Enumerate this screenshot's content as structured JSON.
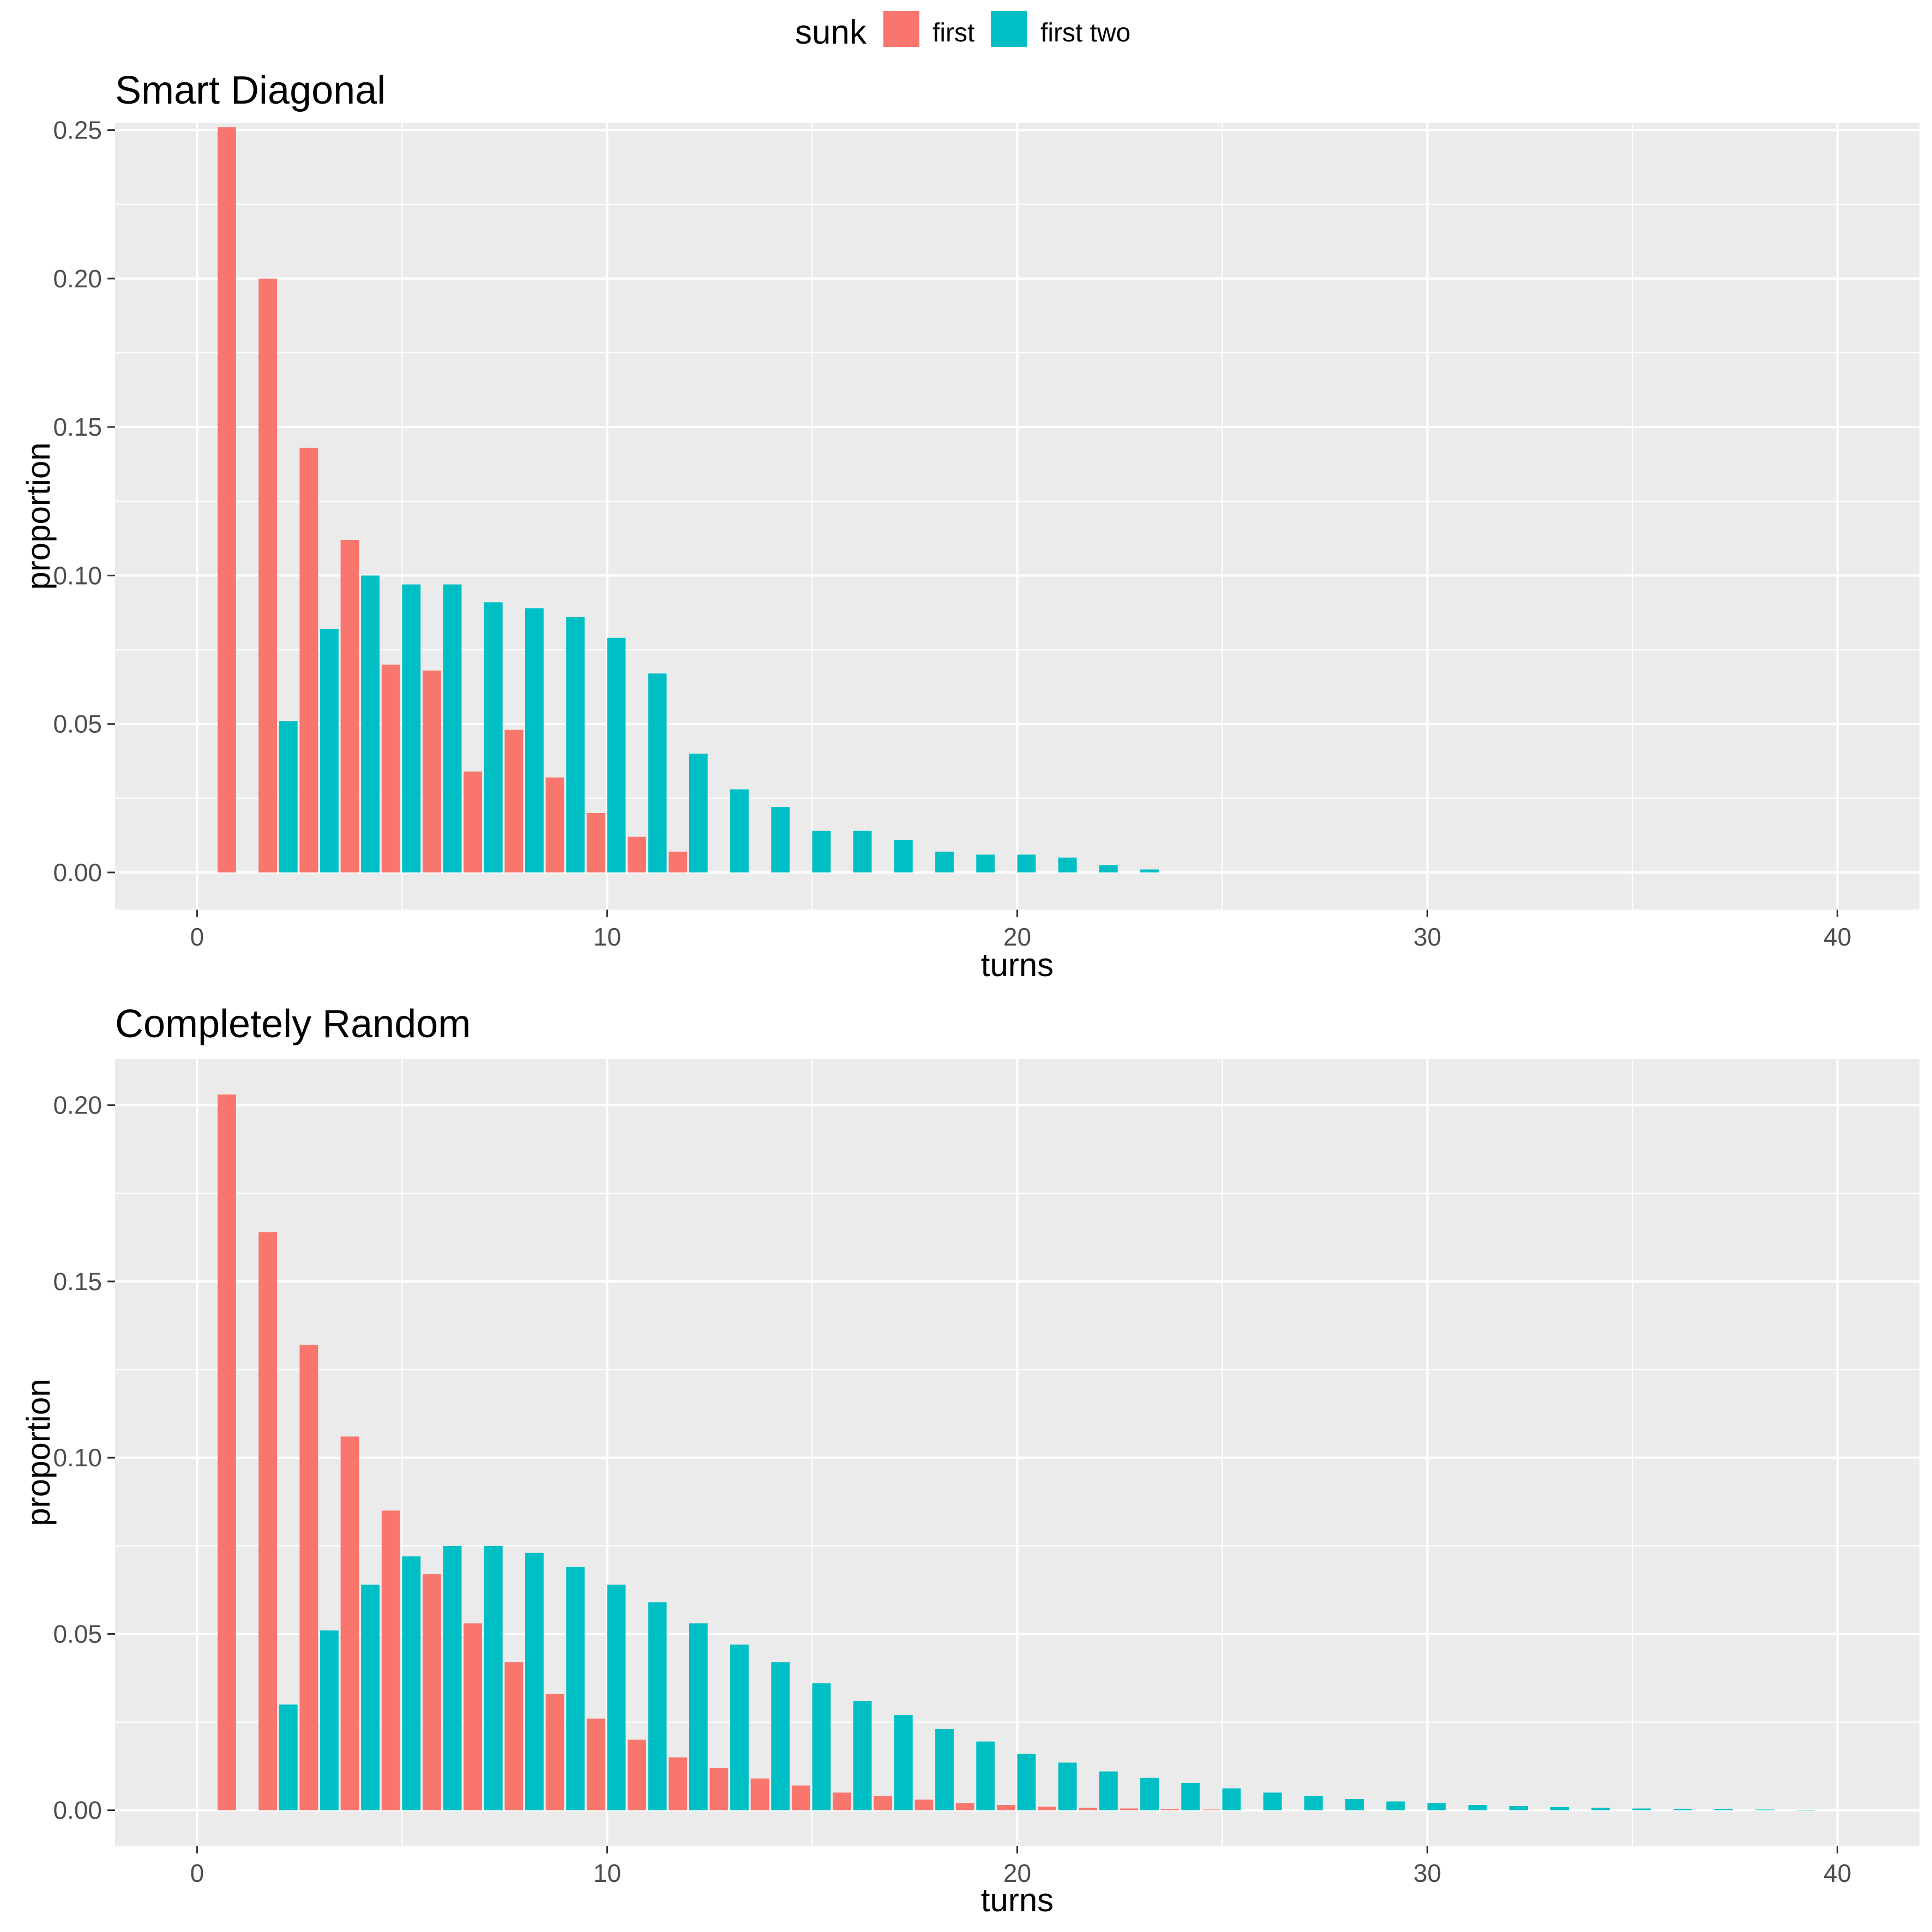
{
  "legend": {
    "title": "sunk",
    "entries": [
      {
        "label": "first",
        "color": "#F8766D"
      },
      {
        "label": "first two",
        "color": "#00BFC4"
      }
    ]
  },
  "chart_data": [
    {
      "type": "bar",
      "title": "Smart Diagonal",
      "xlabel": "turns",
      "ylabel": "proportion",
      "xlim": [
        -2,
        42
      ],
      "ylim": [
        -0.0125,
        0.2525
      ],
      "xticks": [
        0,
        10,
        20,
        30,
        40
      ],
      "yticks": [
        0.0,
        0.05,
        0.1,
        0.15,
        0.2,
        0.25
      ],
      "ytick_labels": [
        "0.00",
        "0.05",
        "0.10",
        "0.15",
        "0.20",
        "0.25"
      ],
      "grid": true,
      "legend_position": "top",
      "series": [
        {
          "name": "first",
          "color": "#F8766D",
          "x": [
            1,
            2,
            3,
            4,
            5,
            6,
            7,
            8,
            9,
            10,
            11,
            12
          ],
          "values": [
            0.251,
            0.2,
            0.143,
            0.112,
            0.07,
            0.068,
            0.034,
            0.048,
            0.032,
            0.02,
            0.012,
            0.007
          ]
        },
        {
          "name": "first two",
          "color": "#00BFC4",
          "x": [
            2,
            3,
            4,
            5,
            6,
            7,
            8,
            9,
            10,
            11,
            12,
            13,
            14,
            15,
            16,
            17,
            18,
            19,
            20,
            21,
            22,
            23
          ],
          "values": [
            0.051,
            0.082,
            0.1,
            0.097,
            0.097,
            0.091,
            0.089,
            0.086,
            0.079,
            0.067,
            0.04,
            0.028,
            0.022,
            0.014,
            0.014,
            0.011,
            0.007,
            0.006,
            0.006,
            0.005,
            0.0025,
            0.001
          ]
        }
      ]
    },
    {
      "type": "bar",
      "title": "Completely Random",
      "xlabel": "turns",
      "ylabel": "proportion",
      "xlim": [
        -2,
        42
      ],
      "ylim": [
        -0.0101,
        0.2131
      ],
      "xticks": [
        0,
        10,
        20,
        30,
        40
      ],
      "yticks": [
        0.0,
        0.05,
        0.1,
        0.15,
        0.2
      ],
      "ytick_labels": [
        "0.00",
        "0.05",
        "0.10",
        "0.15",
        "0.20"
      ],
      "grid": true,
      "legend_position": "top",
      "series": [
        {
          "name": "first",
          "color": "#F8766D",
          "x": [
            1,
            2,
            3,
            4,
            5,
            6,
            7,
            8,
            9,
            10,
            11,
            12,
            13,
            14,
            15,
            16,
            17,
            18,
            19,
            20,
            21,
            22,
            23,
            24,
            25
          ],
          "values": [
            0.203,
            0.164,
            0.132,
            0.106,
            0.085,
            0.067,
            0.053,
            0.042,
            0.033,
            0.026,
            0.02,
            0.015,
            0.012,
            0.009,
            0.007,
            0.005,
            0.004,
            0.003,
            0.002,
            0.0015,
            0.001,
            0.0007,
            0.0005,
            0.0003,
            0.0002
          ]
        },
        {
          "name": "first two",
          "color": "#00BFC4",
          "x": [
            2,
            3,
            4,
            5,
            6,
            7,
            8,
            9,
            10,
            11,
            12,
            13,
            14,
            15,
            16,
            17,
            18,
            19,
            20,
            21,
            22,
            23,
            24,
            25,
            26,
            27,
            28,
            29,
            30,
            31,
            32,
            33,
            34,
            35,
            36,
            37,
            38,
            39
          ],
          "values": [
            0.03,
            0.051,
            0.064,
            0.072,
            0.075,
            0.075,
            0.073,
            0.069,
            0.064,
            0.059,
            0.053,
            0.047,
            0.042,
            0.036,
            0.031,
            0.027,
            0.023,
            0.0195,
            0.016,
            0.0135,
            0.011,
            0.0092,
            0.0077,
            0.0062,
            0.005,
            0.004,
            0.0032,
            0.0025,
            0.002,
            0.0015,
            0.0012,
            0.0009,
            0.0007,
            0.0005,
            0.0004,
            0.0003,
            0.0002,
            0.0001
          ]
        }
      ]
    }
  ]
}
